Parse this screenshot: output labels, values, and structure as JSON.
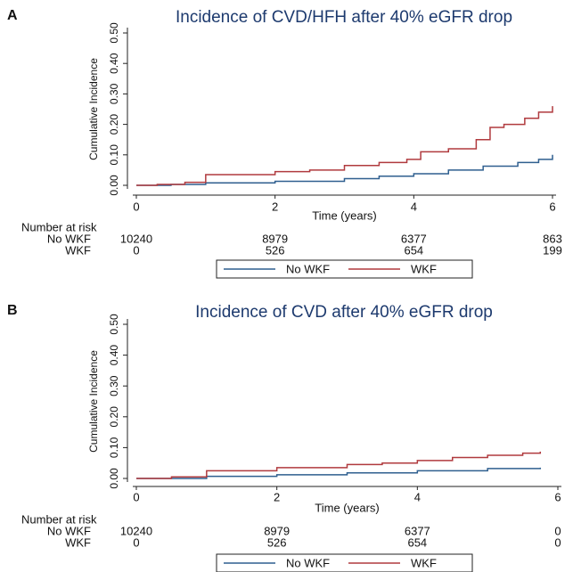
{
  "chart_data": [
    {
      "type": "line",
      "step": true,
      "panel": "A",
      "title": "Incidence of CVD/HFH after 40% eGFR drop",
      "x_label": "Time (years)",
      "y_label": "Cumulative Incidence",
      "xlim": [
        0,
        6
      ],
      "xticks": [
        0,
        2,
        4,
        6
      ],
      "ylim": [
        0,
        0.5
      ],
      "yticks": [
        {
          "value": 0,
          "label": "0.00"
        },
        {
          "value": 0.1,
          "label": "0.10"
        },
        {
          "value": 0.2,
          "label": "0.20"
        },
        {
          "value": 0.3,
          "label": "0.30"
        },
        {
          "value": 0.4,
          "label": "0.40"
        },
        {
          "value": 0.5,
          "label": "0.50"
        }
      ],
      "series": [
        {
          "name": "No WKF",
          "color": "#2f5f8f",
          "x": [
            0,
            0.5,
            1,
            2,
            3,
            3.5,
            4,
            4.5,
            5,
            5.5,
            5.8,
            6
          ],
          "values": [
            0,
            0.003,
            0.008,
            0.013,
            0.022,
            0.03,
            0.038,
            0.05,
            0.063,
            0.075,
            0.085,
            0.1
          ]
        },
        {
          "name": "WKF",
          "color": "#b03a3e",
          "x": [
            0,
            0.3,
            0.7,
            1,
            2,
            2.5,
            3,
            3.5,
            3.9,
            4.1,
            4.5,
            4.9,
            5.1,
            5.3,
            5.6,
            5.8,
            6
          ],
          "values": [
            0,
            0.003,
            0.01,
            0.035,
            0.045,
            0.05,
            0.065,
            0.075,
            0.085,
            0.11,
            0.12,
            0.15,
            0.19,
            0.2,
            0.22,
            0.24,
            0.26
          ]
        }
      ],
      "risk_table": {
        "label": "Number at risk",
        "times": [
          0,
          2,
          4,
          6
        ],
        "rows": [
          {
            "name": "No WKF",
            "values": [
              10240,
              8979,
              6377,
              863
            ]
          },
          {
            "name": "WKF",
            "values": [
              0,
              526,
              654,
              199
            ]
          }
        ]
      }
    },
    {
      "type": "line",
      "step": true,
      "panel": "B",
      "title": "Incidence of CVD after 40% eGFR drop",
      "x_label": "Time (years)",
      "y_label": "Cumulative Incidence",
      "xlim": [
        0,
        6
      ],
      "xticks": [
        0,
        2,
        4,
        6
      ],
      "ylim": [
        0,
        0.5
      ],
      "yticks": [
        {
          "value": 0,
          "label": "0.00"
        },
        {
          "value": 0.1,
          "label": "0.10"
        },
        {
          "value": 0.2,
          "label": "0.20"
        },
        {
          "value": 0.3,
          "label": "0.30"
        },
        {
          "value": 0.4,
          "label": "0.40"
        },
        {
          "value": 0.5,
          "label": "0.50"
        }
      ],
      "series": [
        {
          "name": "No WKF",
          "color": "#2f5f8f",
          "x": [
            0,
            1,
            2,
            3,
            4,
            5,
            5.75
          ],
          "values": [
            0,
            0.007,
            0.012,
            0.018,
            0.025,
            0.032,
            0.035
          ]
        },
        {
          "name": "WKF",
          "color": "#b03a3e",
          "x": [
            0,
            0.5,
            1,
            2,
            3,
            3.5,
            4,
            4.5,
            5,
            5.5,
            5.75
          ],
          "values": [
            0,
            0.005,
            0.025,
            0.035,
            0.045,
            0.05,
            0.058,
            0.068,
            0.075,
            0.082,
            0.087
          ]
        }
      ],
      "risk_table": {
        "label": "Number at risk",
        "times": [
          0,
          2,
          4,
          6
        ],
        "rows": [
          {
            "name": "No WKF",
            "values": [
              10240,
              8979,
              6377,
              0
            ]
          },
          {
            "name": "WKF",
            "values": [
              0,
              526,
              654,
              0
            ]
          }
        ]
      }
    }
  ]
}
